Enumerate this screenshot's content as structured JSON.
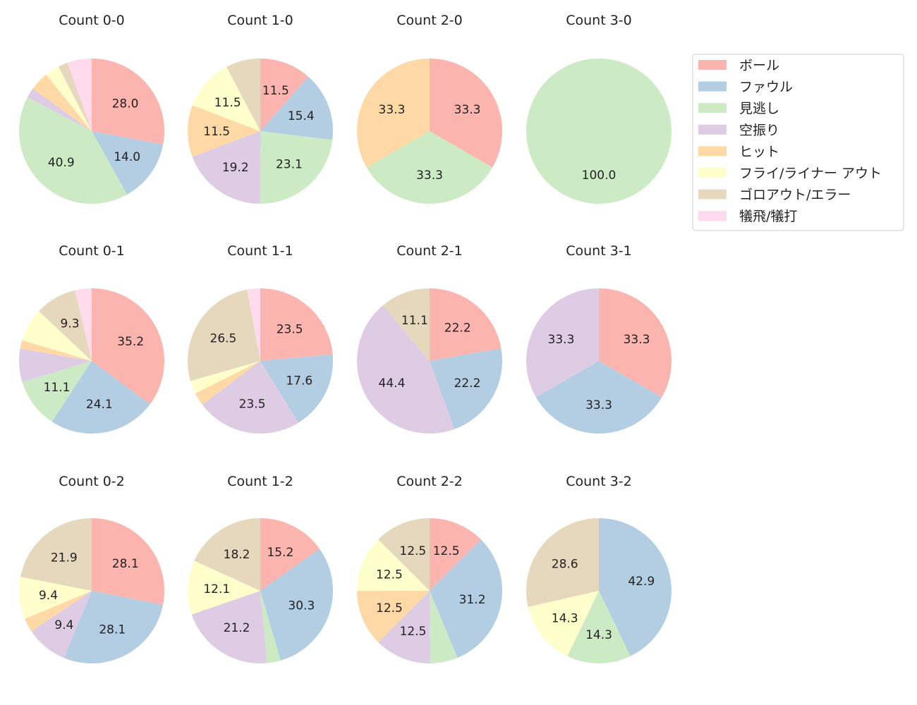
{
  "chart_data": {
    "type": "pie",
    "legend_placement": "top-right",
    "colors": [
      "#fbb4ae",
      "#b3cde3",
      "#ccebc5",
      "#decbe4",
      "#fed9a6",
      "#ffffcc",
      "#e5d8bd",
      "#fddaec"
    ],
    "legend": [
      "ボール",
      "ファウル",
      "見逃し",
      "空振り",
      "ヒット",
      "フライ/ライナー アウト",
      "ゴロアウト/エラー",
      "犠飛/犠打"
    ],
    "charts": [
      {
        "title": "Count 0-0",
        "values": [
          28.0,
          14.0,
          40.9,
          2.2,
          4.3,
          3.2,
          2.2,
          5.4
        ]
      },
      {
        "title": "Count 1-0",
        "values": [
          11.5,
          15.4,
          23.1,
          19.2,
          11.5,
          11.5,
          7.7,
          0
        ]
      },
      {
        "title": "Count 2-0",
        "values": [
          33.3,
          0,
          33.3,
          0,
          33.3,
          0,
          0,
          0
        ]
      },
      {
        "title": "Count 3-0",
        "values": [
          0,
          0,
          100.0,
          0,
          0,
          0,
          0,
          0
        ]
      },
      {
        "title": "Count 0-1",
        "values": [
          35.2,
          24.1,
          11.1,
          7.4,
          1.9,
          7.4,
          9.3,
          3.7
        ]
      },
      {
        "title": "Count 1-1",
        "values": [
          23.5,
          17.6,
          0,
          23.5,
          2.9,
          2.9,
          26.5,
          2.9
        ]
      },
      {
        "title": "Count 2-1",
        "values": [
          22.2,
          22.2,
          0,
          44.4,
          0,
          0,
          11.1,
          0
        ]
      },
      {
        "title": "Count 3-1",
        "values": [
          33.3,
          33.3,
          0,
          33.3,
          0,
          0,
          0,
          0
        ]
      },
      {
        "title": "Count 0-2",
        "values": [
          28.1,
          28.1,
          0,
          9.4,
          3.1,
          9.4,
          21.9,
          0
        ]
      },
      {
        "title": "Count 1-2",
        "values": [
          15.2,
          30.3,
          3.0,
          21.2,
          0,
          12.1,
          18.2,
          0
        ]
      },
      {
        "title": "Count 2-2",
        "values": [
          12.5,
          31.2,
          6.2,
          12.5,
          12.5,
          12.5,
          12.5,
          0
        ]
      },
      {
        "title": "Count 3-2",
        "values": [
          0,
          42.9,
          14.3,
          0,
          0,
          14.3,
          28.6,
          0
        ]
      }
    ]
  }
}
